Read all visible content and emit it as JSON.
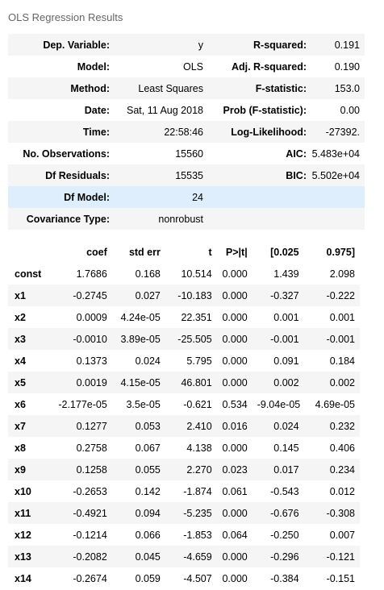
{
  "title": "OLS Regression Results",
  "summary": [
    {
      "l1": "Dep. Variable:",
      "v1": "y",
      "l2": "R-squared:",
      "v2": "0.191"
    },
    {
      "l1": "Model:",
      "v1": "OLS",
      "l2": "Adj. R-squared:",
      "v2": "0.190"
    },
    {
      "l1": "Method:",
      "v1": "Least Squares",
      "l2": "F-statistic:",
      "v2": "153.0"
    },
    {
      "l1": "Date:",
      "v1": "Sat, 11 Aug 2018",
      "l2": "Prob (F-statistic):",
      "v2": "0.00"
    },
    {
      "l1": "Time:",
      "v1": "22:58:46",
      "l2": "Log-Likelihood:",
      "v2": "-27392."
    },
    {
      "l1": "No. Observations:",
      "v1": "15560",
      "l2": "AIC:",
      "v2": "5.483e+04"
    },
    {
      "l1": "Df Residuals:",
      "v1": "15535",
      "l2": "BIC:",
      "v2": "5.502e+04"
    },
    {
      "l1": "Df Model:",
      "v1": "24",
      "l2": "",
      "v2": ""
    },
    {
      "l1": "Covariance Type:",
      "v1": "nonrobust",
      "l2": "",
      "v2": ""
    }
  ],
  "coef_headers": [
    "",
    "coef",
    "std err",
    "t",
    "P>|t|",
    "[0.025",
    "0.975]"
  ],
  "coef_rows": [
    [
      "const",
      "1.7686",
      "0.168",
      "10.514",
      "0.000",
      "1.439",
      "2.098"
    ],
    [
      "x1",
      "-0.2745",
      "0.027",
      "-10.183",
      "0.000",
      "-0.327",
      "-0.222"
    ],
    [
      "x2",
      "0.0009",
      "4.24e-05",
      "22.351",
      "0.000",
      "0.001",
      "0.001"
    ],
    [
      "x3",
      "-0.0010",
      "3.89e-05",
      "-25.505",
      "0.000",
      "-0.001",
      "-0.001"
    ],
    [
      "x4",
      "0.1373",
      "0.024",
      "5.795",
      "0.000",
      "0.091",
      "0.184"
    ],
    [
      "x5",
      "0.0019",
      "4.15e-05",
      "46.801",
      "0.000",
      "0.002",
      "0.002"
    ],
    [
      "x6",
      "-2.177e-05",
      "3.5e-05",
      "-0.621",
      "0.534",
      "-9.04e-05",
      "4.69e-05"
    ],
    [
      "x7",
      "0.1277",
      "0.053",
      "2.410",
      "0.016",
      "0.024",
      "0.232"
    ],
    [
      "x8",
      "0.2758",
      "0.067",
      "4.138",
      "0.000",
      "0.145",
      "0.406"
    ],
    [
      "x9",
      "0.1258",
      "0.055",
      "2.270",
      "0.023",
      "0.017",
      "0.234"
    ],
    [
      "x10",
      "-0.2653",
      "0.142",
      "-1.874",
      "0.061",
      "-0.543",
      "0.012"
    ],
    [
      "x11",
      "-0.4921",
      "0.094",
      "-5.235",
      "0.000",
      "-0.676",
      "-0.308"
    ],
    [
      "x12",
      "-0.1214",
      "0.066",
      "-1.853",
      "0.064",
      "-0.250",
      "0.007"
    ],
    [
      "x13",
      "-0.2082",
      "0.045",
      "-4.659",
      "0.000",
      "-0.296",
      "-0.121"
    ],
    [
      "x14",
      "-0.2674",
      "0.059",
      "-4.507",
      "0.000",
      "-0.384",
      "-0.151"
    ]
  ]
}
